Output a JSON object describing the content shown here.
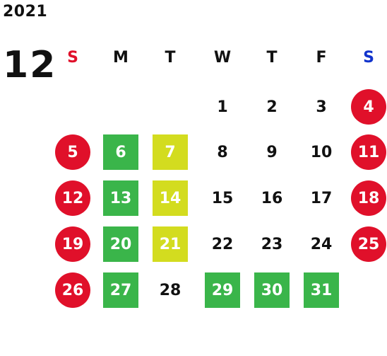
{
  "year": "2021",
  "month": "12",
  "colors": {
    "sunday_red": "#e0102a",
    "saturday_blue": "#1133cc",
    "green": "#3ab54a",
    "yellow": "#d3dc1f"
  },
  "weekdays": [
    "S",
    "M",
    "T",
    "W",
    "T",
    "F",
    "S"
  ],
  "weeks": [
    [
      null,
      null,
      null,
      {
        "d": "1"
      },
      {
        "d": "2"
      },
      {
        "d": "3"
      },
      {
        "d": "4",
        "style": "circle"
      }
    ],
    [
      {
        "d": "5",
        "style": "circle"
      },
      {
        "d": "6",
        "style": "green"
      },
      {
        "d": "7",
        "style": "yellow"
      },
      {
        "d": "8"
      },
      {
        "d": "9"
      },
      {
        "d": "10"
      },
      {
        "d": "11",
        "style": "circle"
      }
    ],
    [
      {
        "d": "12",
        "style": "circle"
      },
      {
        "d": "13",
        "style": "green"
      },
      {
        "d": "14",
        "style": "yellow"
      },
      {
        "d": "15"
      },
      {
        "d": "16"
      },
      {
        "d": "17"
      },
      {
        "d": "18",
        "style": "circle"
      }
    ],
    [
      {
        "d": "19",
        "style": "circle"
      },
      {
        "d": "20",
        "style": "green"
      },
      {
        "d": "21",
        "style": "yellow"
      },
      {
        "d": "22"
      },
      {
        "d": "23"
      },
      {
        "d": "24"
      },
      {
        "d": "25",
        "style": "circle"
      }
    ],
    [
      {
        "d": "26",
        "style": "circle"
      },
      {
        "d": "27",
        "style": "green"
      },
      {
        "d": "28"
      },
      {
        "d": "29",
        "style": "green"
      },
      {
        "d": "30",
        "style": "green"
      },
      {
        "d": "31",
        "style": "green"
      },
      null
    ]
  ]
}
